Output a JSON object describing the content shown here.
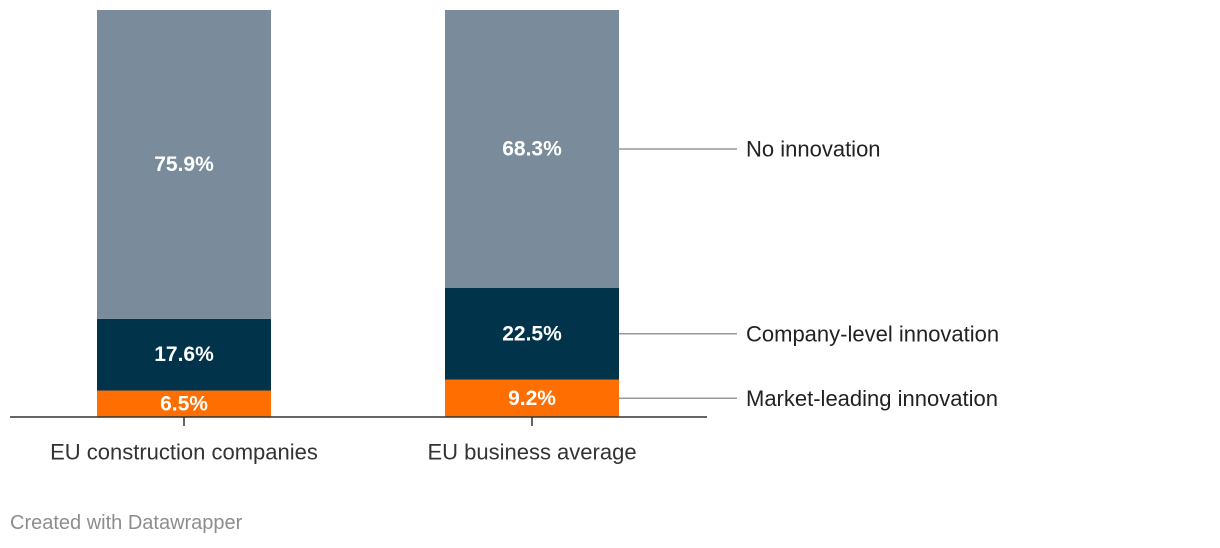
{
  "chart_data": {
    "type": "bar",
    "stacked": true,
    "categories": [
      "EU construction companies",
      "EU business average"
    ],
    "series": [
      {
        "name": "Market-leading innovation",
        "values": [
          6.5,
          9.2
        ],
        "color": "#ff6e00"
      },
      {
        "name": "Company-level innovation",
        "values": [
          17.6,
          22.5
        ],
        "color": "#01334a"
      },
      {
        "name": "No innovation",
        "values": [
          75.9,
          68.3
        ],
        "color": "#7a8c9c"
      }
    ],
    "data_labels": [
      [
        "6.5%",
        "9.2%"
      ],
      [
        "17.6%",
        "22.5%"
      ],
      [
        "75.9%",
        "68.3%"
      ]
    ],
    "ylim": [
      0,
      100
    ],
    "grid": false,
    "legend": "right"
  },
  "footer": {
    "credit": "Created with Datawrapper"
  }
}
